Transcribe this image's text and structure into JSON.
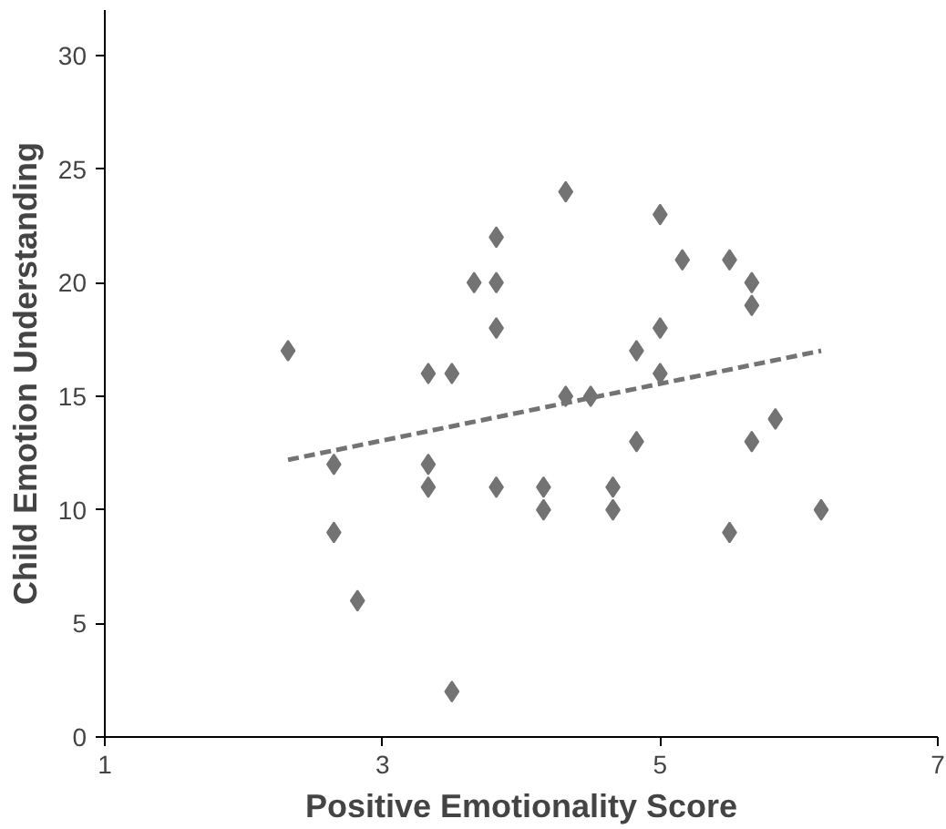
{
  "chart_data": {
    "type": "scatter",
    "xlabel": "Positive Emotionality Score",
    "ylabel": "Child Emotion Understanding",
    "xlim": [
      1,
      7
    ],
    "xticks": [
      1,
      3,
      5,
      7
    ],
    "ylim": [
      0,
      32
    ],
    "yticks": [
      0,
      5,
      10,
      15,
      20,
      25,
      30
    ],
    "grid": false,
    "series": [
      {
        "marker": "diamond",
        "color": "#737373",
        "x": [
          2.32,
          2.65,
          2.65,
          2.82,
          3.33,
          3.33,
          3.33,
          3.5,
          3.5,
          3.66,
          3.82,
          3.82,
          3.82,
          3.82,
          4.16,
          4.16,
          4.32,
          4.32,
          4.5,
          4.66,
          4.66,
          4.83,
          4.83,
          5.0,
          5.0,
          5.0,
          5.16,
          5.5,
          5.5,
          5.66,
          5.66,
          5.66,
          5.83,
          6.16
        ],
        "values": [
          17,
          12,
          9,
          6,
          16,
          12,
          11,
          16,
          2,
          20,
          22,
          20,
          18,
          11,
          11,
          10,
          24,
          15,
          15,
          11,
          10,
          13,
          17,
          23,
          18,
          16,
          21,
          21,
          9,
          20,
          19,
          13,
          14,
          10
        ]
      },
      {
        "type": "line",
        "color": "#737373",
        "line_style": "dashed",
        "x": [
          2.32,
          6.16
        ],
        "values": [
          12.2,
          17.0
        ]
      }
    ]
  }
}
